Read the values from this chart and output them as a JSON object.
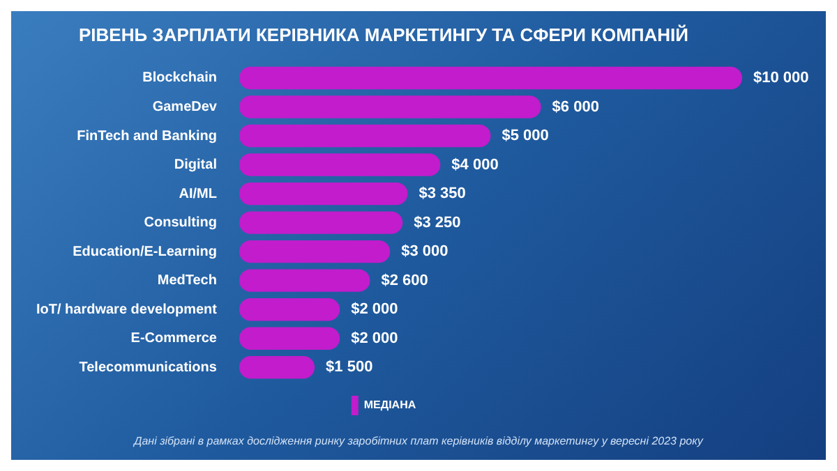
{
  "chart_data": {
    "type": "bar",
    "orientation": "horizontal",
    "title": "РІВЕНЬ ЗАРПЛАТИ КЕРІВНИКА МАРКЕТИНГУ ТА СФЕРИ КОМПАНІЙ",
    "categories": [
      "Blockchain",
      "GameDev",
      "FinTech and Banking",
      "Digital",
      "AI/ML",
      "Consulting",
      "Education/E-Learning",
      "MedTech",
      "IoT/ hardware development",
      "E-Commerce",
      "Telecommunications"
    ],
    "series": [
      {
        "name": "МЕДІАНА",
        "color": "#c21ccc",
        "values": [
          10000,
          6000,
          5000,
          4000,
          3350,
          3250,
          3000,
          2600,
          2000,
          2000,
          1500
        ],
        "value_labels": [
          "$10 000",
          "$6 000",
          "$5 000",
          "$4 000",
          "$3 350",
          "$3 250",
          "$3 000",
          "$2 600",
          "$2 000",
          "$2 000",
          "$1 500"
        ]
      }
    ],
    "legend": "bottom",
    "grid": false,
    "tick_labels": "y",
    "annotations": [
      "Дані зібрані в рамках дослідження ринку заробітних плат керівників відділу маркетингу у вересні 2023 року"
    ]
  }
}
